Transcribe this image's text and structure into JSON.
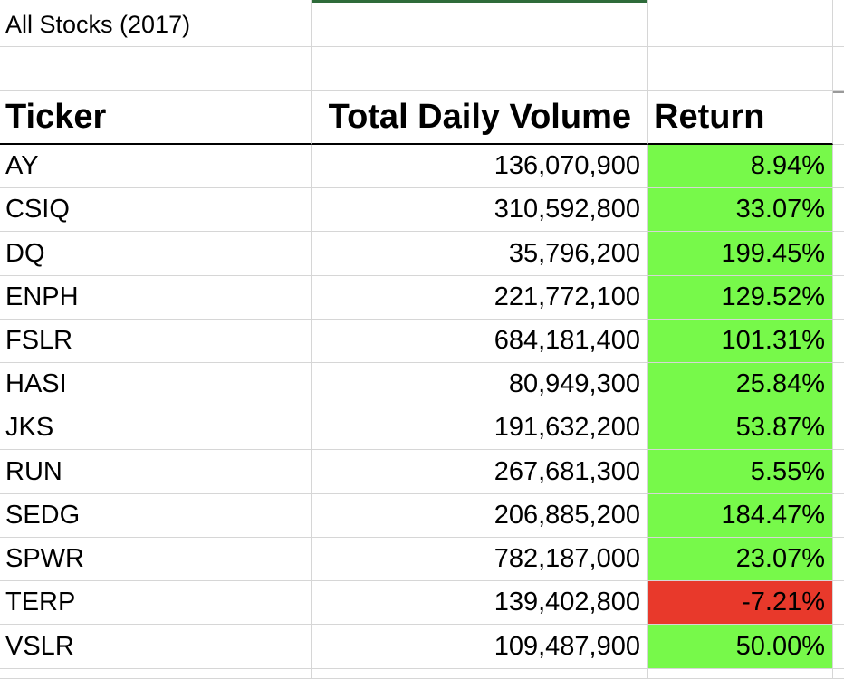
{
  "sheet": {
    "title": "All Stocks (2017)",
    "headers": {
      "ticker": "Ticker",
      "volume": "Total Daily Volume",
      "return": "Return"
    },
    "colors": {
      "positive": "#77f94a",
      "negative": "#e8392b",
      "selection_bar": "#2e6b3a"
    },
    "rows": [
      {
        "ticker": "AY",
        "volume": "136,070,900",
        "return": "8.94%",
        "status": "positive"
      },
      {
        "ticker": "CSIQ",
        "volume": "310,592,800",
        "return": "33.07%",
        "status": "positive"
      },
      {
        "ticker": "DQ",
        "volume": "35,796,200",
        "return": "199.45%",
        "status": "positive"
      },
      {
        "ticker": "ENPH",
        "volume": "221,772,100",
        "return": "129.52%",
        "status": "positive"
      },
      {
        "ticker": "FSLR",
        "volume": "684,181,400",
        "return": "101.31%",
        "status": "positive"
      },
      {
        "ticker": "HASI",
        "volume": "80,949,300",
        "return": "25.84%",
        "status": "positive"
      },
      {
        "ticker": "JKS",
        "volume": "191,632,200",
        "return": "53.87%",
        "status": "positive"
      },
      {
        "ticker": "RUN",
        "volume": "267,681,300",
        "return": "5.55%",
        "status": "positive"
      },
      {
        "ticker": "SEDG",
        "volume": "206,885,200",
        "return": "184.47%",
        "status": "positive"
      },
      {
        "ticker": "SPWR",
        "volume": "782,187,000",
        "return": "23.07%",
        "status": "positive"
      },
      {
        "ticker": "TERP",
        "volume": "139,402,800",
        "return": "-7.21%",
        "status": "negative"
      },
      {
        "ticker": "VSLR",
        "volume": "109,487,900",
        "return": "50.00%",
        "status": "positive"
      }
    ]
  }
}
